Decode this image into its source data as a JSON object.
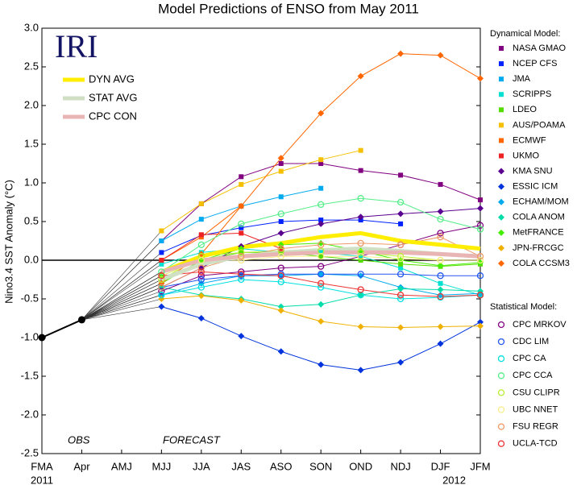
{
  "chart_data": {
    "type": "line",
    "title": "Model Predictions of ENSO from May 2011",
    "y_label": "Nino3.4 SST Anomaly (°C)",
    "logo": "IRI",
    "annotations": [
      "OBS",
      "FORECAST"
    ],
    "categories": [
      "FMA",
      "Apr",
      "AMJ",
      "MJJ",
      "JJA",
      "JAS",
      "ASO",
      "SON",
      "OND",
      "NDJ",
      "DJF",
      "JFM"
    ],
    "year_labels": [
      "2011",
      null,
      null,
      null,
      null,
      null,
      null,
      null,
      null,
      null,
      "2012",
      null
    ],
    "ylim": [
      -2.5,
      3.0
    ],
    "yticks": [
      {
        "value": -2.5,
        "label": "-2.5"
      },
      {
        "value": -2,
        "label": "-2.0"
      },
      {
        "value": -1.5,
        "label": "-1.5"
      },
      {
        "value": -1,
        "label": "-1.0"
      },
      {
        "value": -0.5,
        "label": "-0.5"
      },
      {
        "value": 0,
        "label": "0.0"
      },
      {
        "value": 0.5,
        "label": "0.5"
      },
      {
        "value": 1,
        "label": "1.0"
      },
      {
        "value": 1.5,
        "label": "1.5"
      },
      {
        "value": 2,
        "label": "2.0"
      },
      {
        "value": 2.5,
        "label": "2.5"
      },
      {
        "value": 3,
        "label": "3.0"
      }
    ],
    "zero_line": true,
    "observed": {
      "color": "#000000",
      "values": [
        -1.0,
        -0.77,
        null,
        null,
        null,
        null,
        null,
        null,
        null,
        null,
        null,
        null
      ]
    },
    "averages": {
      "series": [
        {
          "name": "DYN AVG",
          "color": "#ffee00",
          "values": [
            null,
            null,
            null,
            -0.15,
            0.05,
            0.17,
            0.22,
            0.3,
            0.35,
            0.25,
            0.2,
            0.15
          ]
        },
        {
          "name": "STAT AVG",
          "color": "#cfe0c4",
          "values": [
            null,
            null,
            null,
            -0.25,
            -0.05,
            0.05,
            0.1,
            0.13,
            0.15,
            0.12,
            0.08,
            0.05
          ]
        },
        {
          "name": "CPC CON",
          "color": "#e8b4b4",
          "values": [
            null,
            null,
            null,
            -0.15,
            0.0,
            0.05,
            0.08,
            0.1,
            0.1,
            0.1,
            0.08,
            0.05
          ]
        }
      ]
    },
    "dynamical": {
      "title": "Dynamical Model:",
      "series": [
        {
          "name": "NASA GMAO",
          "marker": "square",
          "color": "#800080",
          "values": [
            null,
            null,
            null,
            0.25,
            0.73,
            1.08,
            1.25,
            1.25,
            1.16,
            1.1,
            0.98,
            0.78
          ]
        },
        {
          "name": "NCEP CFS",
          "marker": "square",
          "color": "#0022ff",
          "values": [
            null,
            null,
            null,
            0.1,
            0.32,
            0.42,
            0.5,
            0.52,
            0.52,
            0.47,
            null,
            null
          ]
        },
        {
          "name": "JMA",
          "marker": "square",
          "color": "#00aaee",
          "values": [
            null,
            null,
            null,
            0.25,
            0.53,
            0.7,
            0.82,
            0.93,
            null,
            null,
            null,
            null
          ]
        },
        {
          "name": "SCRIPPS",
          "marker": "square",
          "color": "#00e0d0",
          "values": [
            null,
            null,
            null,
            -0.05,
            0.1,
            0.15,
            0.1,
            0.1,
            0.05,
            -0.1,
            -0.3,
            -0.45
          ]
        },
        {
          "name": "LDEO",
          "marker": "square",
          "color": "#55dd00",
          "values": [
            null,
            null,
            null,
            -0.2,
            0.0,
            0.1,
            0.1,
            0.05,
            0.0,
            -0.05,
            -0.08,
            -0.05
          ]
        },
        {
          "name": "AUS/POAMA",
          "marker": "square",
          "color": "#f5c000",
          "values": [
            null,
            null,
            null,
            0.38,
            0.73,
            0.98,
            1.15,
            1.3,
            1.42,
            null,
            null,
            null
          ]
        },
        {
          "name": "ECMWF",
          "marker": "square",
          "color": "#ff6600",
          "values": [
            null,
            null,
            null,
            0.0,
            0.3,
            0.7,
            null,
            null,
            null,
            null,
            null,
            null
          ]
        },
        {
          "name": "UKMO",
          "marker": "square",
          "color": "#ee2222",
          "values": [
            null,
            null,
            null,
            0.0,
            0.33,
            0.35,
            0.15,
            null,
            null,
            null,
            null,
            null
          ]
        },
        {
          "name": "KMA SNU",
          "marker": "diamond",
          "color": "#5a0090",
          "values": [
            null,
            null,
            null,
            -0.35,
            -0.1,
            0.18,
            0.35,
            0.47,
            0.56,
            0.6,
            0.63,
            0.67
          ]
        },
        {
          "name": "ESSIC ICM",
          "marker": "diamond",
          "color": "#0033dd",
          "values": [
            null,
            null,
            null,
            -0.6,
            -0.75,
            -0.98,
            -1.18,
            -1.35,
            -1.42,
            -1.32,
            -1.08,
            -0.8
          ]
        },
        {
          "name": "ECHAM/MOM",
          "marker": "diamond",
          "color": "#00aaee",
          "values": [
            null,
            null,
            null,
            -0.45,
            -0.3,
            -0.2,
            -0.2,
            -0.18,
            -0.2,
            -0.35,
            -0.45,
            -0.43
          ]
        },
        {
          "name": "COLA ANOM",
          "marker": "diamond",
          "color": "#00ddaa",
          "values": [
            null,
            null,
            null,
            -0.35,
            -0.45,
            -0.5,
            -0.6,
            -0.57,
            -0.45,
            -0.37,
            -0.38,
            -0.4
          ]
        },
        {
          "name": "MetFRANCE",
          "marker": "diamond",
          "color": "#44ee00",
          "values": [
            null,
            null,
            null,
            -0.3,
            0.0,
            0.15,
            0.2,
            0.22,
            0.12,
            0.0,
            -0.07,
            -0.03
          ]
        },
        {
          "name": "JPN-FRCGC",
          "marker": "diamond",
          "color": "#f0b000",
          "values": [
            null,
            null,
            null,
            -0.5,
            -0.46,
            -0.52,
            -0.65,
            -0.79,
            -0.86,
            -0.87,
            -0.86,
            -0.85
          ]
        },
        {
          "name": "COLA CCSM3",
          "marker": "diamond",
          "color": "#ff6600",
          "values": [
            null,
            null,
            null,
            -0.3,
            0.08,
            0.7,
            1.32,
            1.9,
            2.38,
            2.67,
            2.65,
            2.35
          ]
        }
      ]
    },
    "statistical": {
      "title": "Statistical Model:",
      "series": [
        {
          "name": "CPC MRKOV",
          "marker": "circle",
          "color": "#800080",
          "values": [
            null,
            null,
            null,
            -0.4,
            -0.2,
            -0.15,
            -0.1,
            -0.08,
            0.05,
            0.2,
            0.35,
            0.45
          ]
        },
        {
          "name": "CDC LIM",
          "marker": "circle",
          "color": "#2255ee",
          "values": [
            null,
            null,
            null,
            -0.35,
            -0.25,
            -0.2,
            -0.18,
            -0.18,
            -0.18,
            -0.18,
            -0.2,
            -0.2
          ]
        },
        {
          "name": "CPC CA",
          "marker": "circle",
          "color": "#00e0e0",
          "values": [
            null,
            null,
            null,
            -0.45,
            -0.35,
            -0.25,
            -0.28,
            -0.35,
            -0.45,
            -0.5,
            -0.48,
            -0.45
          ]
        },
        {
          "name": "CPC CCA",
          "marker": "circle",
          "color": "#55ee88",
          "values": [
            null,
            null,
            null,
            -0.15,
            0.2,
            0.47,
            0.6,
            0.72,
            0.8,
            0.75,
            0.53,
            0.4
          ]
        },
        {
          "name": "CSU CLIPR",
          "marker": "circle",
          "color": "#bbee33",
          "values": [
            null,
            null,
            null,
            -0.25,
            0.05,
            0.1,
            0.12,
            0.12,
            0.1,
            0.05,
            0.0,
            0.0
          ]
        },
        {
          "name": "UBC NNET",
          "marker": "circle",
          "color": "#f8ee88",
          "values": [
            null,
            null,
            null,
            -0.2,
            0.0,
            0.0,
            0.05,
            0.05,
            0.05,
            0.02,
            0.0,
            0.0
          ]
        },
        {
          "name": "FSU REGR",
          "marker": "circle",
          "color": "#ee9966",
          "values": [
            null,
            null,
            null,
            -0.35,
            -0.1,
            0.05,
            0.15,
            0.2,
            0.22,
            0.2,
            0.3,
            0.05
          ]
        },
        {
          "name": "UCLA-TCD",
          "marker": "circle",
          "color": "#ee3333",
          "values": [
            null,
            null,
            null,
            -0.2,
            -0.15,
            -0.18,
            -0.2,
            -0.3,
            -0.38,
            -0.45,
            -0.47,
            -0.45
          ]
        }
      ]
    }
  }
}
